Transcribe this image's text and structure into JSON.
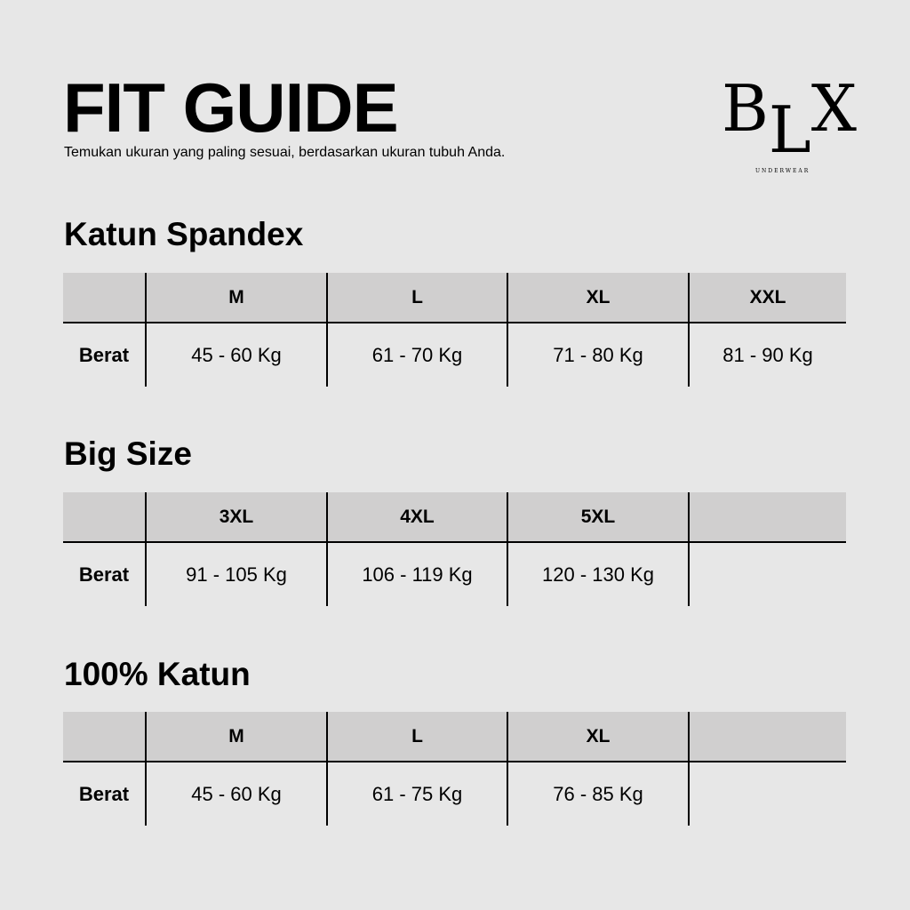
{
  "header": {
    "title": "FIT GUIDE",
    "subtitle": "Temukan ukuran yang paling sesuai, berdasarkan ukuran tubuh Anda."
  },
  "logo": {
    "letters": [
      "B",
      "L",
      "X"
    ],
    "tagline": "UNDERWEAR"
  },
  "tables": [
    {
      "title": "Katun Spandex",
      "sizes": [
        "M",
        "L",
        "XL",
        "XXL"
      ],
      "row_label": "Berat",
      "values": [
        "45 - 60 Kg",
        "61 - 70 Kg",
        "71 - 80 Kg",
        "81 - 90 Kg"
      ]
    },
    {
      "title": "Big Size",
      "sizes": [
        "3XL",
        "4XL",
        "5XL",
        ""
      ],
      "row_label": "Berat",
      "values": [
        "91 - 105 Kg",
        "106 - 119 Kg",
        "120 - 130 Kg",
        ""
      ]
    },
    {
      "title": "100% Katun",
      "sizes": [
        "M",
        "L",
        "XL",
        ""
      ],
      "row_label": "Berat",
      "values": [
        "45 - 60 Kg",
        "61 - 75 Kg",
        "76 - 85 Kg",
        ""
      ]
    }
  ],
  "colors": {
    "background": "#e7e7e7",
    "header_fill": "#d0cfcf",
    "text": "#000000"
  }
}
